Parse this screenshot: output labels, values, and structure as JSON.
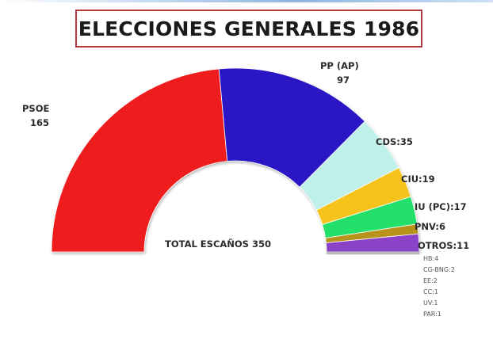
{
  "chart_data": {
    "type": "pie",
    "subtype": "semicircle-parliament",
    "title": "ELECCIONES GENERALES 1986",
    "total_label": "TOTAL ESCAÑOS 350",
    "total": 350,
    "series": [
      {
        "name": "PSOE",
        "value": 165,
        "label": "PSOE",
        "value_label": "165",
        "color": "#ee1d1d"
      },
      {
        "name": "PP (AP)",
        "value": 97,
        "label": "PP (AP)",
        "value_label": "97",
        "color": "#2b18c4"
      },
      {
        "name": "CDS",
        "value": 35,
        "label": "CDS:35",
        "color": "#bff0ea"
      },
      {
        "name": "CIU",
        "value": 19,
        "label": "CIU:19",
        "color": "#f6c21a"
      },
      {
        "name": "IU (PC)",
        "value": 17,
        "label": "IU (PC):17",
        "color": "#22e06a"
      },
      {
        "name": "PNV",
        "value": 6,
        "label": "PNV:6",
        "color": "#b8931c"
      },
      {
        "name": "OTROS",
        "value": 11,
        "label": "OTROS:11",
        "color": "#8a43c8"
      }
    ],
    "otros_breakdown": [
      "HB:4",
      "CG-BNG:2",
      "EE:2",
      "CC:1",
      "UV:1",
      "PAR:1"
    ]
  }
}
